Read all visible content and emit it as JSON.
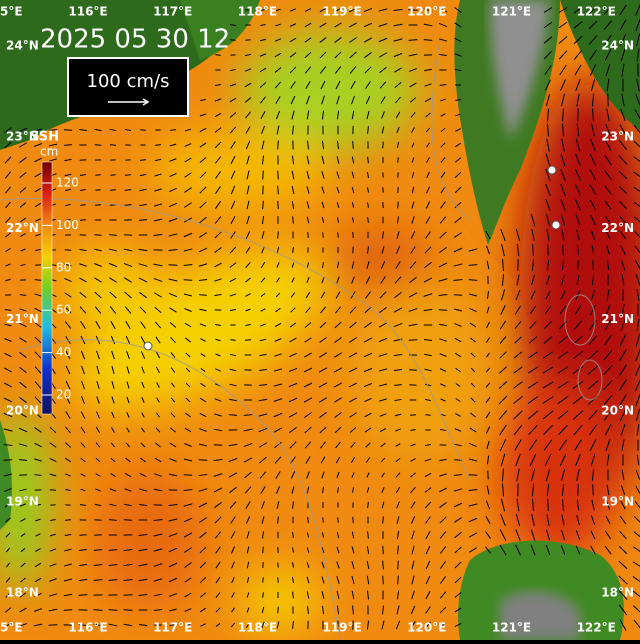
{
  "title": "2025 05 30 12",
  "scale_label": "100 cm/s",
  "colorbar": {
    "title": "SSH",
    "unit": "cm",
    "ticks": [
      20,
      40,
      60,
      80,
      100,
      120
    ]
  },
  "lon_labels_top": [
    "5°E",
    "116°E",
    "117°E",
    "118°E",
    "119°E",
    "120°E",
    "121°E",
    "122°E"
  ],
  "lon_labels_bottom": [
    "5°E",
    "116°E",
    "117°E",
    "118°E",
    "119°E",
    "120°E",
    "121°E",
    "122°E"
  ],
  "lat_labels_left": [
    "24°N",
    "23°N",
    "22°N",
    "21°N",
    "20°N",
    "19°N",
    "18°N"
  ],
  "lat_labels_right": [
    "24°N",
    "23°N",
    "22°N",
    "21°N",
    "20°N",
    "19°N",
    "18°N"
  ]
}
